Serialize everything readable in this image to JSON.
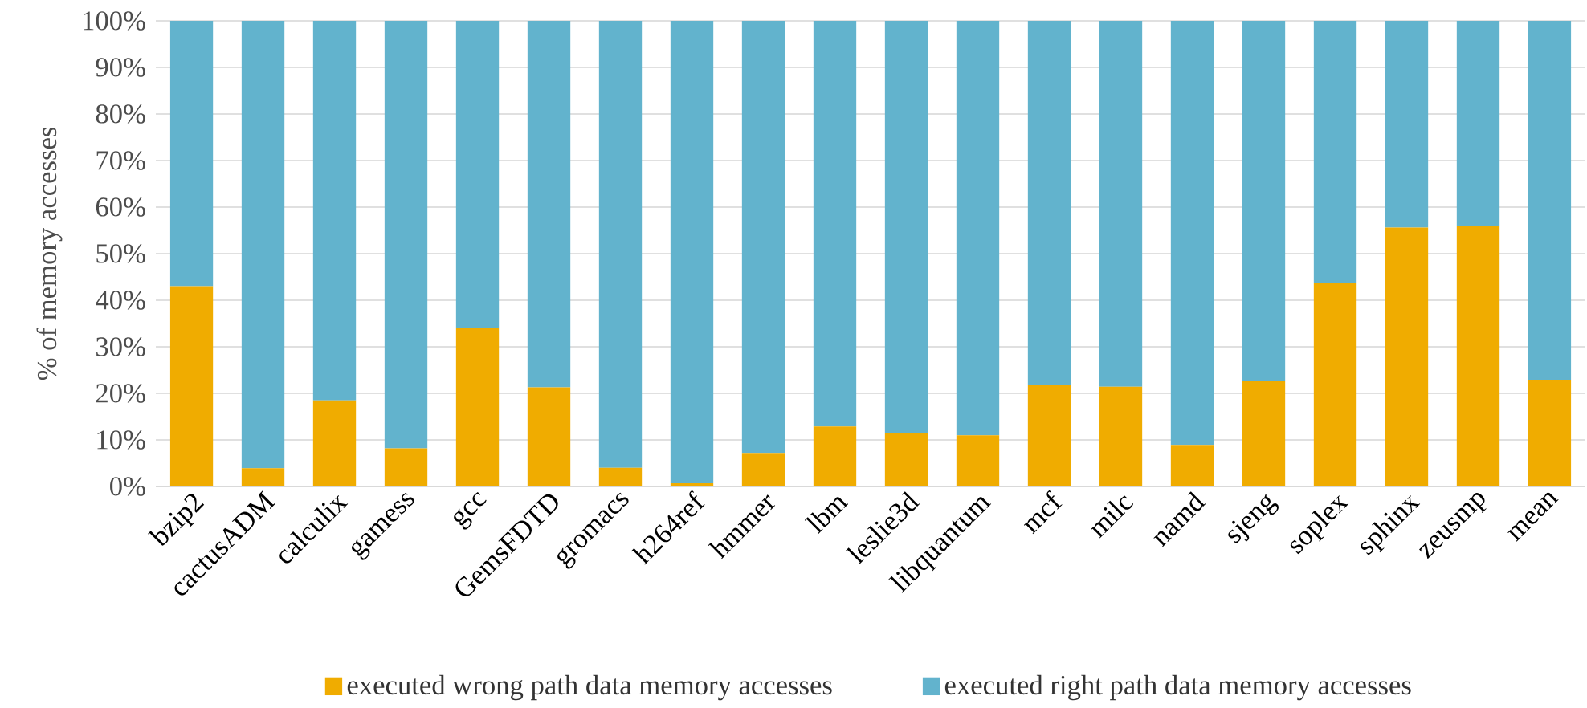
{
  "chart_data": {
    "type": "bar",
    "stacked": true,
    "ylabel": "% of memory accesses",
    "categories": [
      "bzip2",
      "cactusADM",
      "calculix",
      "gamess",
      "gcc",
      "GemsFDTD",
      "gromacs",
      "h264ref",
      "hmmer",
      "lbm",
      "leslie3d",
      "libquantum",
      "mcf",
      "milc",
      "namd",
      "sjeng",
      "soplex",
      "sphinx",
      "zeusmp",
      "mean"
    ],
    "series": [
      {
        "name": "executed wrong path data memory accesses",
        "color": "#f0ac00",
        "values": [
          43.0,
          3.9,
          18.5,
          8.2,
          34.1,
          21.3,
          4.0,
          0.7,
          7.2,
          12.9,
          11.5,
          11.0,
          21.9,
          21.4,
          8.9,
          22.6,
          43.6,
          55.6,
          55.9,
          22.8
        ]
      },
      {
        "name": "executed right path data memory accesses",
        "color": "#62b3cd",
        "values": [
          57.0,
          96.1,
          81.5,
          91.8,
          65.9,
          78.7,
          96.0,
          99.3,
          92.8,
          87.1,
          88.5,
          89.0,
          78.1,
          78.6,
          91.1,
          77.4,
          56.4,
          44.4,
          44.1,
          77.2
        ]
      }
    ],
    "ylim": [
      0,
      100
    ],
    "yticks": [
      {
        "value": 0,
        "label": "0%"
      },
      {
        "value": 10,
        "label": "10%"
      },
      {
        "value": 20,
        "label": "20%"
      },
      {
        "value": 30,
        "label": "30%"
      },
      {
        "value": 40,
        "label": "40%"
      },
      {
        "value": 50,
        "label": "50%"
      },
      {
        "value": 60,
        "label": "60%"
      },
      {
        "value": 70,
        "label": "70%"
      },
      {
        "value": 80,
        "label": "80%"
      },
      {
        "value": 90,
        "label": "90%"
      },
      {
        "value": 100,
        "label": "100%"
      }
    ],
    "grid": "y",
    "legend": "bottom"
  }
}
